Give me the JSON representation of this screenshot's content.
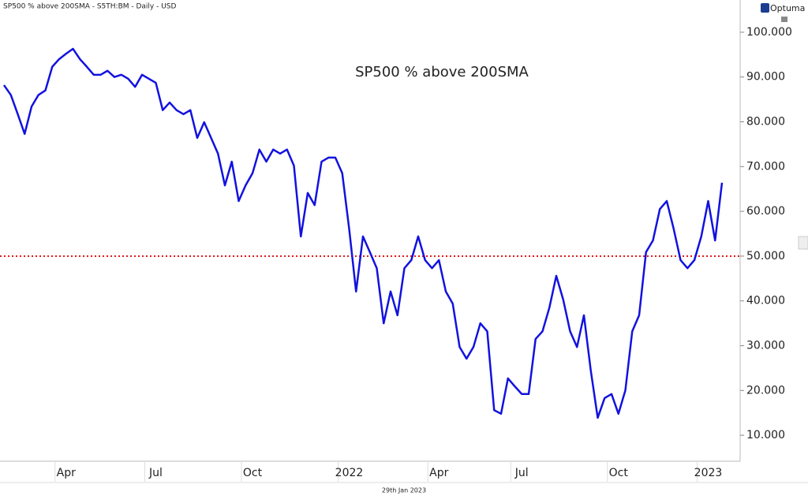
{
  "chart_data": {
    "type": "line",
    "header": "SP500 % above 200SMA - S5TH:BM - Daily - USD",
    "title": "SP500 % above 200SMA",
    "footer": "29th Jan 2023",
    "logo": "Optuma",
    "categories": [
      null,
      null,
      null,
      null,
      null,
      null,
      null,
      null,
      null,
      "Apr",
      null,
      null,
      null,
      null,
      null,
      null,
      null,
      null,
      null,
      null,
      null,
      null,
      "Jul",
      null,
      null,
      null,
      null,
      null,
      null,
      null,
      null,
      null,
      null,
      null,
      null,
      null,
      "Oct",
      null,
      null,
      null,
      null,
      null,
      null,
      null,
      null,
      null,
      null,
      null,
      null,
      null,
      "2022",
      null,
      null,
      null,
      null,
      null,
      null,
      null,
      null,
      null,
      null,
      null,
      null,
      "Apr",
      null,
      null,
      null,
      null,
      null,
      null,
      null,
      null,
      null,
      null,
      null,
      "Jul",
      null,
      null,
      null,
      null,
      null,
      null,
      null,
      null,
      null,
      null,
      null,
      null,
      null,
      "Oct",
      null,
      null,
      null,
      null,
      null,
      null,
      null,
      null,
      null,
      null,
      null,
      null,
      "2023",
      null,
      null
    ],
    "series": [
      {
        "name": "SP500 % above 200SMA",
        "color": "#1212e0",
        "values": [
          88.2,
          86,
          81.7,
          77.3,
          83.4,
          86,
          87,
          92.3,
          94,
          95.2,
          96.3,
          94,
          92.3,
          90.5,
          90.5,
          91.4,
          90,
          90.5,
          89.6,
          87.8,
          90.5,
          89.6,
          88.7,
          82.6,
          84.3,
          82.6,
          81.7,
          82.6,
          76.4,
          79.9,
          76.4,
          72.9,
          65.8,
          71.1,
          62.3,
          65.8,
          68.5,
          73.8,
          71.1,
          73.8,
          72.9,
          73.8,
          70.2,
          54.4,
          64.1,
          61.4,
          71.1,
          72,
          72,
          68.5,
          56.1,
          42.1,
          54.4,
          50.9,
          47.3,
          35,
          42.1,
          36.8,
          47.3,
          49.1,
          54.4,
          49.1,
          47.3,
          49.1,
          42.1,
          39.4,
          29.7,
          27.1,
          29.7,
          35,
          33.2,
          15.6,
          14.8,
          22.7,
          20.9,
          19.2,
          19.2,
          31.5,
          33.2,
          38.5,
          45.6,
          40.3,
          33.2,
          29.7,
          36.8,
          24.4,
          13.9,
          18.3,
          19.2,
          14.8,
          20,
          33.2,
          36.8,
          50.9,
          53.5,
          60.5,
          62.3,
          56.1,
          49.1,
          47.3,
          49.1,
          54.4,
          62.3,
          53.5,
          66.4
        ]
      }
    ],
    "hline": {
      "value": 50,
      "color": "#e01010"
    },
    "ylim": [
      4.2,
      107.2
    ],
    "yticks": [
      {
        "value": 10,
        "label": "10.000"
      },
      {
        "value": 20,
        "label": "20.000"
      },
      {
        "value": 30,
        "label": "30.000"
      },
      {
        "value": 40,
        "label": "40.000"
      },
      {
        "value": 50,
        "label": "50.000"
      },
      {
        "value": 60,
        "label": "60.000"
      },
      {
        "value": 70,
        "label": "70.000"
      },
      {
        "value": 80,
        "label": "80.000"
      },
      {
        "value": 90,
        "label": "90.000"
      },
      {
        "value": 100,
        "label": "100.000"
      }
    ],
    "grid": false
  }
}
